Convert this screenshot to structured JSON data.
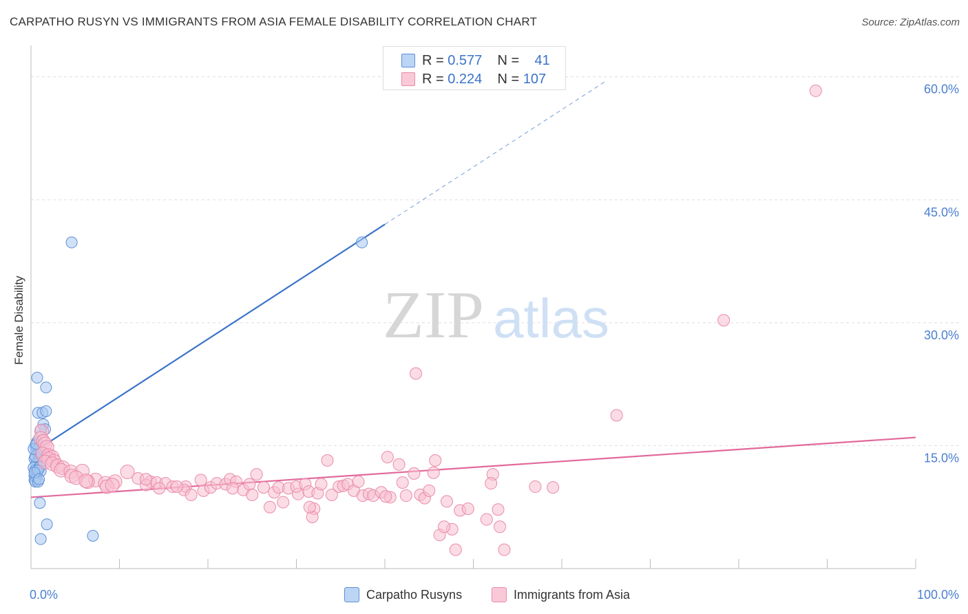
{
  "title": "CARPATHO RUSYN VS IMMIGRANTS FROM ASIA FEMALE DISABILITY CORRELATION CHART",
  "source": "Source: ZipAtlas.com",
  "watermark": {
    "zip": "ZIP",
    "atlas": "atlas"
  },
  "colors": {
    "blue_fill": "#a9c8f0",
    "blue_stroke": "#5b8fd6",
    "blue_line": "#3a73c9",
    "pink_fill": "#f7bfd0",
    "pink_stroke": "#e98aaa",
    "pink_line": "#e2699a",
    "axis_text": "#4a7fd0",
    "grid": "#dddddd"
  },
  "legend": {
    "rows": [
      {
        "r_label": "R =",
        "r_value": "0.577",
        "n_label": "N =",
        "n_value": "41",
        "series": "blue"
      },
      {
        "r_label": "R =",
        "r_value": "0.224",
        "n_label": "N =",
        "n_value": "107",
        "series": "pink"
      }
    ],
    "bottom": [
      {
        "label": "Carpatho Rusyns",
        "series": "blue"
      },
      {
        "label": "Immigrants from Asia",
        "series": "pink"
      }
    ]
  },
  "chart_data": {
    "type": "scatter",
    "title": "CARPATHO RUSYN VS IMMIGRANTS FROM ASIA FEMALE DISABILITY CORRELATION CHART",
    "xlabel": "",
    "ylabel": "Female Disability",
    "xlim": [
      0,
      100
    ],
    "ylim": [
      0,
      63.5
    ],
    "x_tick_labels": [
      {
        "value": 0,
        "label": "0.0%"
      },
      {
        "value": 100,
        "label": "100.0%"
      }
    ],
    "y_tick_labels": [
      {
        "value": 15,
        "label": "15.0%"
      },
      {
        "value": 30,
        "label": "30.0%"
      },
      {
        "value": 45,
        "label": "45.0%"
      },
      {
        "value": 60,
        "label": "60.0%"
      }
    ],
    "x_minor_ticks": [
      10,
      20,
      30,
      40,
      50,
      60,
      70,
      80,
      90,
      100
    ],
    "grid_y": [
      15,
      30,
      45,
      60
    ],
    "series": [
      {
        "name": "Carpatho Rusyns",
        "color": "blue",
        "R": 0.577,
        "N": 41,
        "trend": {
          "x0": 0,
          "y0": 14.0,
          "x1": 40.0,
          "y1": 42.0,
          "dash_to_x": 65.0,
          "dash_to_y": 59.5
        },
        "points": [
          [
            4.6,
            39.8
          ],
          [
            37.4,
            39.8
          ],
          [
            0.7,
            23.3
          ],
          [
            1.7,
            22.1
          ],
          [
            0.8,
            19.0
          ],
          [
            1.3,
            19.0
          ],
          [
            1.7,
            19.2
          ],
          [
            1.4,
            17.6
          ],
          [
            1.6,
            17.0
          ],
          [
            1.1,
            16.9
          ],
          [
            0.7,
            15.5
          ],
          [
            0.5,
            15.0
          ],
          [
            0.9,
            14.8
          ],
          [
            0.6,
            14.4
          ],
          [
            0.7,
            14.0
          ],
          [
            1.1,
            13.9
          ],
          [
            0.4,
            13.4
          ],
          [
            0.9,
            13.3
          ],
          [
            1.3,
            13.2
          ],
          [
            0.6,
            12.8
          ],
          [
            0.3,
            12.3
          ],
          [
            0.5,
            12.0
          ],
          [
            0.7,
            11.9
          ],
          [
            1.1,
            11.9
          ],
          [
            0.4,
            11.3
          ],
          [
            0.6,
            11.1
          ],
          [
            0.4,
            10.8
          ],
          [
            0.5,
            10.6
          ],
          [
            0.8,
            10.6
          ],
          [
            1.0,
            8.0
          ],
          [
            1.8,
            5.4
          ],
          [
            1.1,
            3.6
          ],
          [
            7.0,
            4.0
          ],
          [
            0.5,
            13.7
          ],
          [
            1.0,
            12.4
          ],
          [
            0.3,
            14.6
          ],
          [
            0.8,
            12.0
          ],
          [
            0.6,
            15.2
          ],
          [
            1.2,
            14.1
          ],
          [
            0.4,
            11.7
          ],
          [
            0.9,
            10.9
          ]
        ]
      },
      {
        "name": "Immigrants from Asia",
        "color": "pink",
        "R": 0.224,
        "N": 107,
        "trend": {
          "x0": 0,
          "y0": 8.7,
          "x1": 100.0,
          "y1": 16.0
        },
        "points": [
          [
            88.7,
            58.3
          ],
          [
            78.3,
            30.3
          ],
          [
            43.5,
            23.8
          ],
          [
            66.2,
            18.7
          ],
          [
            1.2,
            16.8
          ],
          [
            1.1,
            15.9
          ],
          [
            1.4,
            15.5
          ],
          [
            1.6,
            15.2
          ],
          [
            1.8,
            14.8
          ],
          [
            1.3,
            14.0
          ],
          [
            2.0,
            13.8
          ],
          [
            2.4,
            13.6
          ],
          [
            2.0,
            13.4
          ],
          [
            2.6,
            13.1
          ],
          [
            1.6,
            13.0
          ],
          [
            2.4,
            12.8
          ],
          [
            3.0,
            12.5
          ],
          [
            3.6,
            12.3
          ],
          [
            3.4,
            12.0
          ],
          [
            4.5,
            11.8
          ],
          [
            5.8,
            11.9
          ],
          [
            10.9,
            11.8
          ],
          [
            4.6,
            11.3
          ],
          [
            5.1,
            11.1
          ],
          [
            7.3,
            10.8
          ],
          [
            6.4,
            10.6
          ],
          [
            8.4,
            10.4
          ],
          [
            9.5,
            10.6
          ],
          [
            12.1,
            11.0
          ],
          [
            8.6,
            10.0
          ],
          [
            13.5,
            10.6
          ],
          [
            13.0,
            10.2
          ],
          [
            14.2,
            10.5
          ],
          [
            15.2,
            10.4
          ],
          [
            16.0,
            10.0
          ],
          [
            14.5,
            9.8
          ],
          [
            17.5,
            10.0
          ],
          [
            17.3,
            9.6
          ],
          [
            19.2,
            10.8
          ],
          [
            18.1,
            9.0
          ],
          [
            19.5,
            9.5
          ],
          [
            20.3,
            9.9
          ],
          [
            21.0,
            10.4
          ],
          [
            22.0,
            10.3
          ],
          [
            22.5,
            10.9
          ],
          [
            23.2,
            10.6
          ],
          [
            22.8,
            9.8
          ],
          [
            24.0,
            9.6
          ],
          [
            24.7,
            10.3
          ],
          [
            25.5,
            11.5
          ],
          [
            25.0,
            9.0
          ],
          [
            26.3,
            9.9
          ],
          [
            27.5,
            9.3
          ],
          [
            28.0,
            9.9
          ],
          [
            29.1,
            9.8
          ],
          [
            28.5,
            8.1
          ],
          [
            30.2,
            9.1
          ],
          [
            30.0,
            10.0
          ],
          [
            31.0,
            10.3
          ],
          [
            31.4,
            9.4
          ],
          [
            32.0,
            7.3
          ],
          [
            32.4,
            9.2
          ],
          [
            32.8,
            10.3
          ],
          [
            33.5,
            13.2
          ],
          [
            34.0,
            9.0
          ],
          [
            34.8,
            10.0
          ],
          [
            35.3,
            10.1
          ],
          [
            35.8,
            10.3
          ],
          [
            36.5,
            9.5
          ],
          [
            37.0,
            10.6
          ],
          [
            37.5,
            8.9
          ],
          [
            38.2,
            9.1
          ],
          [
            38.7,
            8.9
          ],
          [
            39.6,
            9.3
          ],
          [
            40.3,
            13.6
          ],
          [
            40.6,
            8.7
          ],
          [
            41.6,
            12.7
          ],
          [
            42.0,
            10.5
          ],
          [
            43.3,
            11.6
          ],
          [
            44.0,
            9.0
          ],
          [
            44.5,
            8.6
          ],
          [
            45.0,
            9.5
          ],
          [
            45.7,
            13.2
          ],
          [
            47.0,
            8.2
          ],
          [
            48.5,
            7.1
          ],
          [
            49.4,
            7.3
          ],
          [
            51.5,
            6.0
          ],
          [
            52.8,
            7.2
          ],
          [
            53.0,
            5.1
          ],
          [
            46.2,
            4.1
          ],
          [
            47.6,
            4.8
          ],
          [
            46.7,
            5.1
          ],
          [
            48.0,
            2.3
          ],
          [
            53.5,
            2.3
          ],
          [
            52.2,
            11.5
          ],
          [
            57.0,
            10.0
          ],
          [
            59.0,
            9.9
          ],
          [
            45.5,
            11.7
          ],
          [
            52.0,
            10.4
          ],
          [
            40.1,
            8.8
          ],
          [
            42.4,
            8.9
          ],
          [
            31.8,
            6.3
          ],
          [
            27.0,
            7.5
          ],
          [
            31.5,
            7.5
          ],
          [
            13.0,
            10.9
          ],
          [
            9.2,
            10.2
          ],
          [
            6.2,
            10.7
          ],
          [
            16.5,
            10.0
          ]
        ]
      }
    ]
  }
}
